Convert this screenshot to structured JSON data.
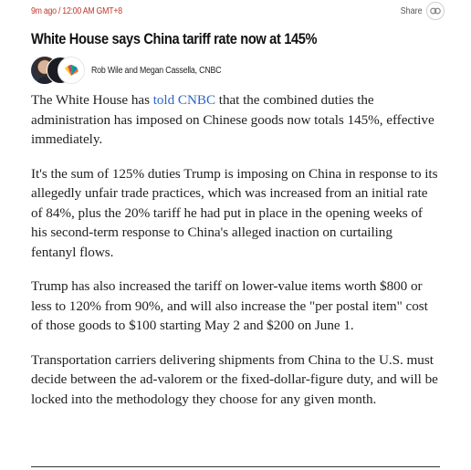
{
  "post": {
    "timestamp": "9m ago / 12:00 AM GMT+8",
    "share_label": "Share",
    "headline": "White House says China tariff rate now at 145%",
    "byline": "Rob Wile and Megan Cassella, CNBC",
    "paragraphs": [
      {
        "before_link": "The White House has ",
        "link_text": "told CNBC",
        "after_link": " that the combined duties the administration has imposed on Chinese goods now totals 145%, effective immediately."
      },
      {
        "text": "It's the sum of 125% duties Trump is imposing on China in response to its allegedly unfair trade practices, which was increased from an initial rate of 84%, plus the 20% tariff he had put in place in the opening weeks of his second-term response to China's alleged inaction on curtailing fentanyl flows."
      },
      {
        "text": "Trump has also increased the tariff on lower-value items worth $800 or less to 120% from 90%, and will also increase the \"per postal item\" cost of those goods to $100 starting May 2 and $200 on June 1."
      },
      {
        "text": "Transportation carriers delivering shipments from China to the U.S. must decide between the ad-valorem or the fixed-dollar-figure duty, and will be locked into the methodology they choose for any given month."
      }
    ]
  },
  "colors": {
    "timestamp": "#c0392b",
    "link": "#2f65c9",
    "body_text": "#222222"
  },
  "icons": {
    "share": "link-chain-icon",
    "publisher": "nbc-peacock-icon"
  }
}
